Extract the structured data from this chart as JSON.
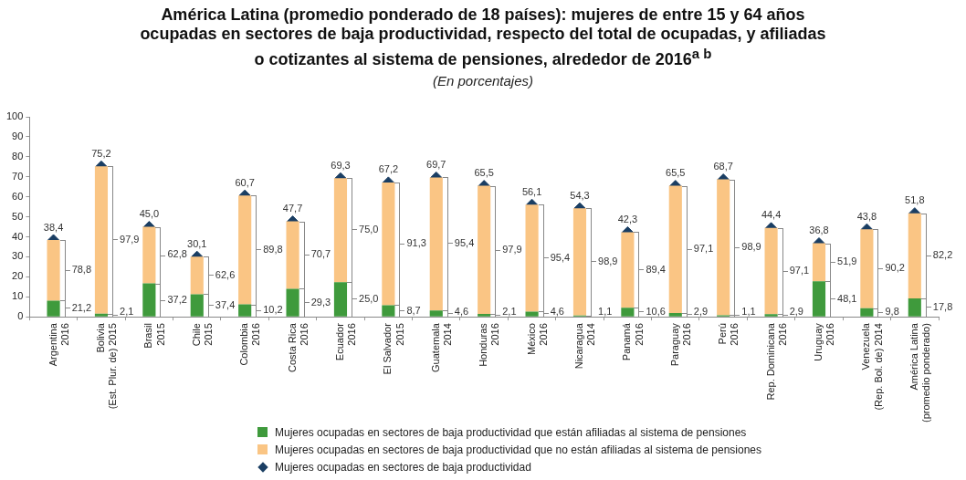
{
  "chart_data": {
    "type": "bar",
    "stacked": true,
    "title": "América Latina (promedio ponderado de 18 países): mujeres de entre 15 y 64 años ocupadas en sectores de baja productividad, respecto del total de ocupadas, y afiliadas o cotizantes al sistema de pensiones, alrededor de 2016$^{a b}$",
    "subtitle": "(En porcentajes)",
    "categories": [
      "Argentina\n2016",
      "Bolivia\n(Est. Plur. de) 2015",
      "Brasil\n2015",
      "Chile\n2015",
      "Colombia\n2016",
      "Costa Rica\n2016",
      "Ecuador\n2016",
      "El Salvador\n2015",
      "Guatemala\n2014",
      "Honduras\n2016",
      "México\n2016",
      "Nicaragua\n2014",
      "Panamá\n2016",
      "Paraguay\n2016",
      "Perú\n2016",
      "Rep. Dominicana\n2016",
      "Uruguay\n2016",
      "Venezuela\n(Rep. Bol. de) 2014",
      "América Latina\n(promedio ponderado)"
    ],
    "series": [
      {
        "name": "Mujeres ocupadas en sectores de baja productividad que están afiliadas al sistema de pensiones",
        "color": "#3f9a3c",
        "values": [
          8.1,
          1.6,
          16.7,
          11.3,
          6.2,
          14.0,
          17.3,
          5.8,
          3.2,
          1.4,
          2.6,
          0.6,
          4.5,
          1.9,
          0.8,
          1.3,
          17.7,
          4.3,
          9.2
        ]
      },
      {
        "name": "Mujeres ocupadas en sectores de baja productividad que no están afiliadas al sistema de pensiones",
        "color": "#fac584",
        "values": [
          30.3,
          73.6,
          28.3,
          18.8,
          54.5,
          33.7,
          52.0,
          61.4,
          66.5,
          64.1,
          53.5,
          53.7,
          37.8,
          63.6,
          67.9,
          43.1,
          19.1,
          39.5,
          42.6
        ]
      },
      {
        "name": "Mujeres ocupadas en sectores de baja productividad",
        "type": "scatter",
        "marker": "diamond",
        "color": "#1a3e63",
        "values": [
          38.4,
          75.2,
          45.0,
          30.1,
          60.7,
          47.7,
          69.3,
          67.2,
          69.7,
          65.5,
          56.1,
          54.3,
          42.3,
          65.5,
          68.7,
          44.4,
          36.8,
          43.8,
          51.8
        ],
        "value_labels": [
          "38,4",
          "75,2",
          "45,0",
          "30,1",
          "60,7",
          "47,7",
          "69,3",
          "67,2",
          "69,7",
          "65,5",
          "56,1",
          "54,3",
          "42,3",
          "65,5",
          "68,7",
          "44,4",
          "36,8",
          "43,8",
          "51,8"
        ]
      }
    ],
    "annotations": [
      {
        "text": "21,2",
        "x": "Argentina\n2016",
        "y": 4.1
      },
      {
        "text": "78,8",
        "x": "Argentina\n2016",
        "y": 23.3
      },
      {
        "text": "2,1",
        "x": "Bolivia\n(Est. Plur. de) 2015",
        "y": 2.5
      },
      {
        "text": "97,9",
        "x": "Bolivia\n(Est. Plur. de) 2015",
        "y": 38.4
      },
      {
        "text": "37,2",
        "x": "Brasil\n2015",
        "y": 8.4
      },
      {
        "text": "62,8",
        "x": "Brasil\n2015",
        "y": 30.9
      },
      {
        "text": "37,4",
        "x": "Chile\n2015",
        "y": 5.7
      },
      {
        "text": "62,6",
        "x": "Chile\n2015",
        "y": 20.7
      },
      {
        "text": "10,2",
        "x": "Colombia\n2016",
        "y": 3.1
      },
      {
        "text": "89,8",
        "x": "Colombia\n2016",
        "y": 33.5
      },
      {
        "text": "29,3",
        "x": "Costa Rica\n2016",
        "y": 7.0
      },
      {
        "text": "70,7",
        "x": "Costa Rica\n2016",
        "y": 30.9
      },
      {
        "text": "25,0",
        "x": "Ecuador\n2016",
        "y": 8.7
      },
      {
        "text": "75,0",
        "x": "Ecuador\n2016",
        "y": 43.3
      },
      {
        "text": "8,7",
        "x": "El Salvador\n2015",
        "y": 2.9
      },
      {
        "text": "91,3",
        "x": "El Salvador\n2015",
        "y": 36.5
      },
      {
        "text": "4,6",
        "x": "Guatemala\n2014",
        "y": 2.5
      },
      {
        "text": "95,4",
        "x": "Guatemala\n2014",
        "y": 36.5
      },
      {
        "text": "2,1",
        "x": "Honduras\n2016",
        "y": 2.5
      },
      {
        "text": "97,9",
        "x": "Honduras\n2016",
        "y": 33.5
      },
      {
        "text": "4,6",
        "x": "México\n2016",
        "y": 2.5
      },
      {
        "text": "95,4",
        "x": "México\n2016",
        "y": 29.4
      },
      {
        "text": "1,1",
        "x": "Nicaragua\n2014",
        "y": 2.5
      },
      {
        "text": "98,9",
        "x": "Nicaragua\n2014",
        "y": 27.5
      },
      {
        "text": "10,6",
        "x": "Panamá\n2016",
        "y": 2.5
      },
      {
        "text": "89,4",
        "x": "Panamá\n2016",
        "y": 23.4
      },
      {
        "text": "2,9",
        "x": "Paraguay\n2016",
        "y": 2.5
      },
      {
        "text": "97,1",
        "x": "Paraguay\n2016",
        "y": 33.7
      },
      {
        "text": "1,1",
        "x": "Perú\n2016",
        "y": 2.5
      },
      {
        "text": "98,9",
        "x": "Perú\n2016",
        "y": 34.8
      },
      {
        "text": "2,9",
        "x": "Rep. Dominicana\n2016",
        "y": 2.5
      },
      {
        "text": "97,1",
        "x": "Rep. Dominicana\n2016",
        "y": 22.9
      },
      {
        "text": "48,1",
        "x": "Uruguay\n2016",
        "y": 8.9
      },
      {
        "text": "51,9",
        "x": "Uruguay\n2016",
        "y": 27.3
      },
      {
        "text": "9,8",
        "x": "Venezuela\n(Rep. Bol. de) 2014",
        "y": 2.5
      },
      {
        "text": "90,2",
        "x": "Venezuela\n(Rep. Bol. de) 2014",
        "y": 24.1
      },
      {
        "text": "17,8",
        "x": "América Latina\n(promedio ponderado)",
        "y": 4.6
      },
      {
        "text": "82,2",
        "x": "América Latina\n(promedio ponderado)",
        "y": 30.5
      }
    ],
    "ylim": [
      0,
      100
    ],
    "yticks": [
      0,
      10,
      20,
      30,
      40,
      50,
      60,
      70,
      80,
      90,
      100
    ],
    "grid": false,
    "legend": "bottom"
  }
}
